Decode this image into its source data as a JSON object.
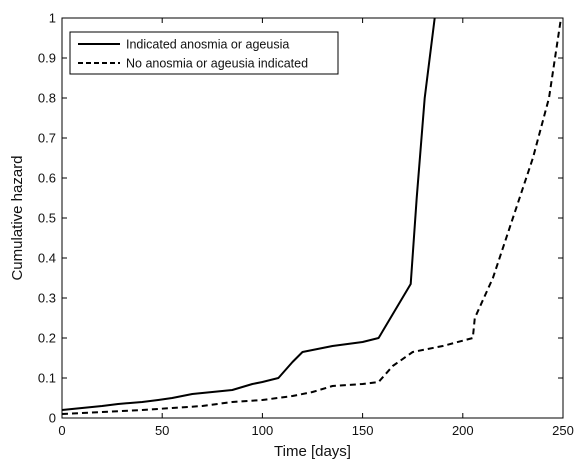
{
  "chart_data": {
    "type": "line",
    "title": "",
    "xlabel": "Time [days]",
    "ylabel": "Cumulative hazard",
    "xlim": [
      0,
      250
    ],
    "ylim": [
      0,
      1
    ],
    "xticks": [
      0,
      50,
      100,
      150,
      200,
      250
    ],
    "yticks": [
      0,
      0.1,
      0.2,
      0.3,
      0.4,
      0.5,
      0.6,
      0.7,
      0.8,
      0.9,
      1
    ],
    "grid": false,
    "legend_position": "top-left",
    "series": [
      {
        "name": "Indicated anosmia or ageusia",
        "style": "solid",
        "color": "#000000",
        "x": [
          0,
          10,
          20,
          28,
          40,
          48,
          55,
          65,
          75,
          85,
          95,
          100,
          108,
          115,
          120,
          135,
          150,
          158,
          174,
          177,
          181,
          186
        ],
        "y": [
          0.02,
          0.025,
          0.03,
          0.035,
          0.04,
          0.045,
          0.05,
          0.06,
          0.065,
          0.07,
          0.085,
          0.09,
          0.1,
          0.14,
          0.165,
          0.18,
          0.19,
          0.2,
          0.335,
          0.55,
          0.8,
          1.0
        ]
      },
      {
        "name": "No anosmia or ageusia indicated",
        "style": "dashed",
        "color": "#000000",
        "x": [
          0,
          20,
          40,
          55,
          70,
          85,
          100,
          115,
          125,
          135,
          150,
          158,
          165,
          175,
          190,
          205,
          206,
          215,
          225,
          235,
          243,
          249
        ],
        "y": [
          0.01,
          0.015,
          0.02,
          0.025,
          0.03,
          0.04,
          0.045,
          0.055,
          0.065,
          0.08,
          0.085,
          0.09,
          0.13,
          0.165,
          0.18,
          0.2,
          0.25,
          0.35,
          0.5,
          0.65,
          0.8,
          1.0
        ]
      }
    ]
  }
}
